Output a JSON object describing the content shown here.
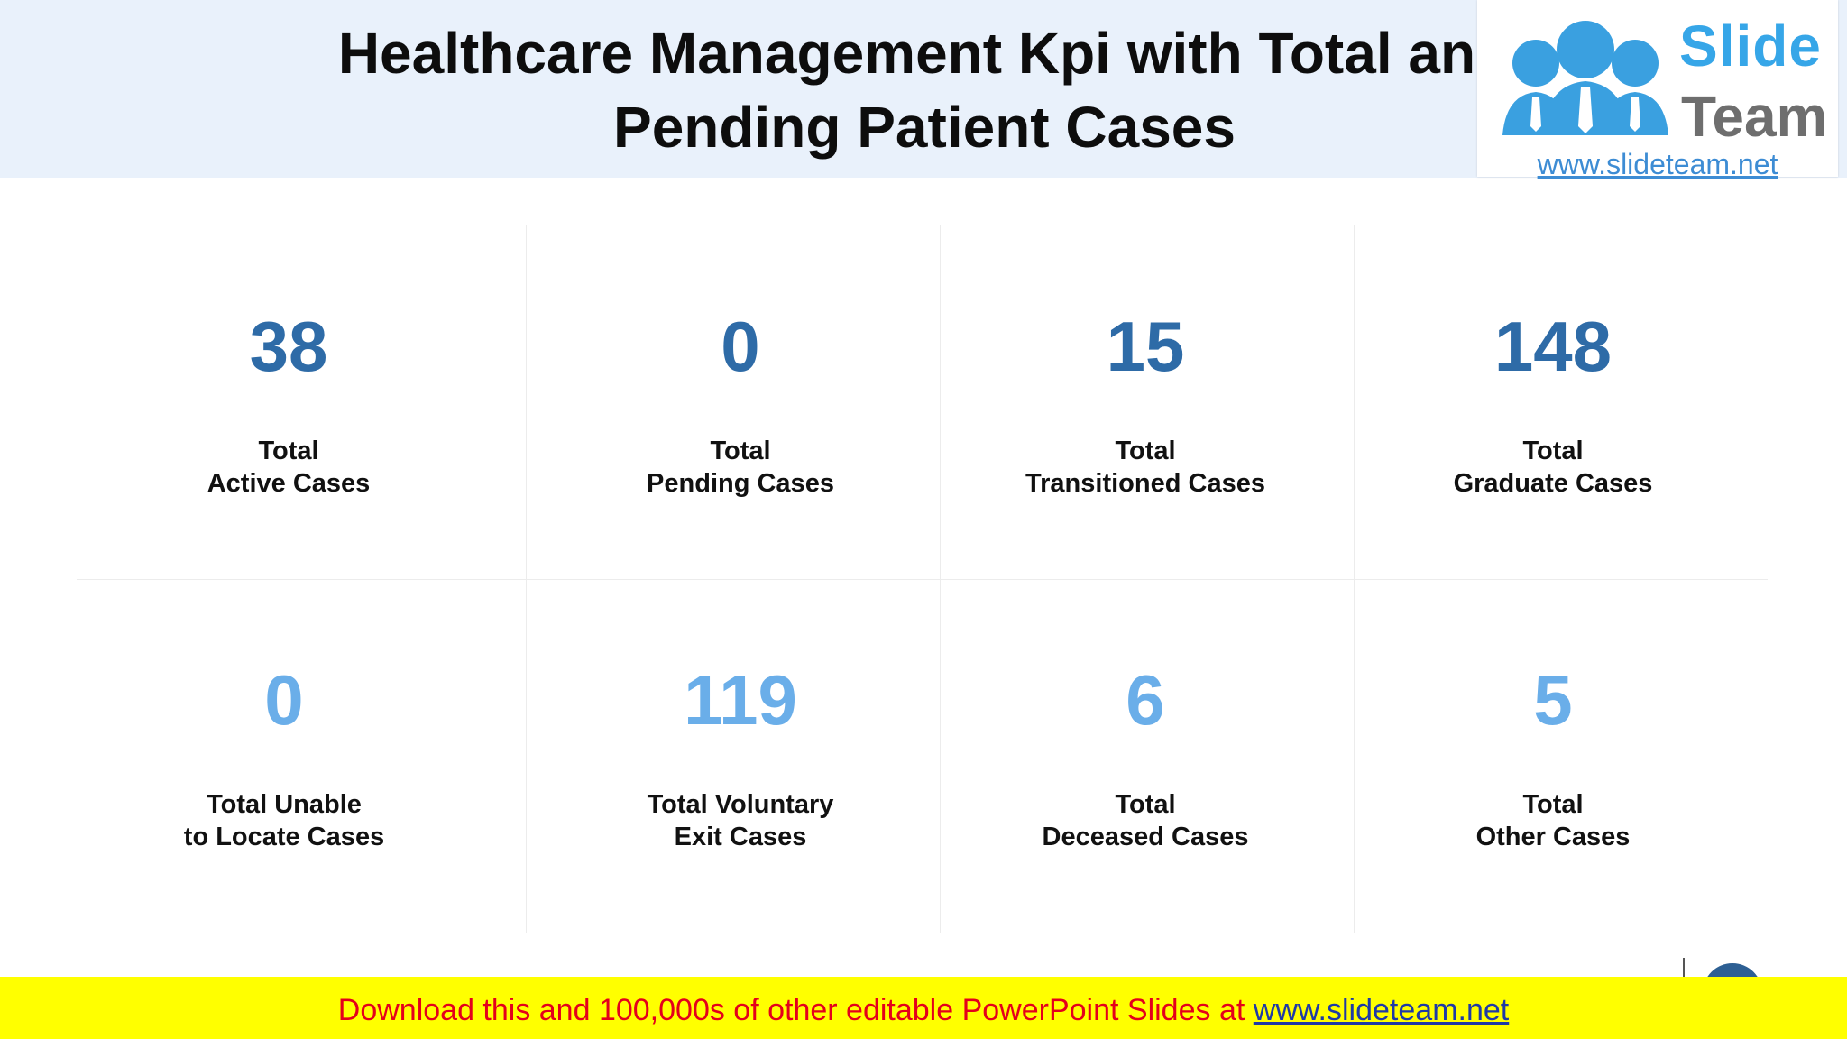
{
  "slide": {
    "title_line1": "Healthcare Management Kpi with Total and",
    "title_line2": "Pending Patient Cases"
  },
  "logo": {
    "word1": "Slide",
    "word2": "Team",
    "url": "www.slideteam.net",
    "icon": "people-group-icon"
  },
  "kpis": [
    {
      "value": "38",
      "label_line1": "Total",
      "label_line2": "Active Cases"
    },
    {
      "value": "0",
      "label_line1": "Total",
      "label_line2": "Pending Cases"
    },
    {
      "value": "15",
      "label_line1": "Total",
      "label_line2": "Transitioned Cases"
    },
    {
      "value": "148",
      "label_line1": "Total",
      "label_line2": "Graduate Cases"
    },
    {
      "value": "0",
      "label_line1": "Total Unable",
      "label_line2": "to Locate Cases"
    },
    {
      "value": "119",
      "label_line1": "Total Voluntary",
      "label_line2": "Exit Cases"
    },
    {
      "value": "6",
      "label_line1": "Total",
      "label_line2": "Deceased Cases"
    },
    {
      "value": "5",
      "label_line1": "Total",
      "label_line2": "Other Cases"
    }
  ],
  "banner": {
    "text": "Download this and 100,000s of other editable PowerPoint Slides at ",
    "link": "www.slideteam.net"
  },
  "colors": {
    "row1_value": "#2e6ba7",
    "row2_value": "#6aaee9",
    "header_bg": "#e9f1fb",
    "banner_bg": "#ffff00",
    "banner_text": "#e4001b"
  }
}
